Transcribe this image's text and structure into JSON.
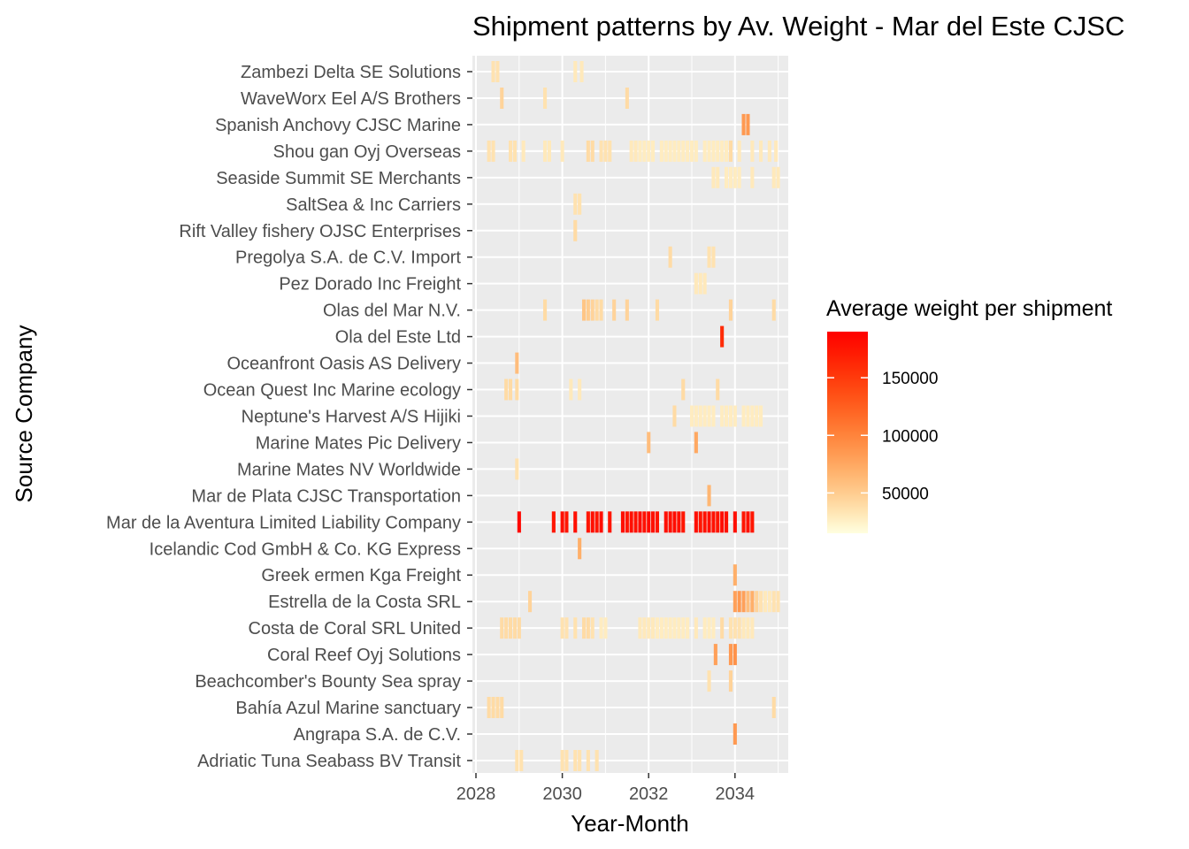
{
  "chart_data": {
    "type": "heatmap",
    "title": "Shipment patterns by Av. Weight - Mar del Este CJSC",
    "xlabel": "Year-Month",
    "ylabel": "Source Company",
    "xlim": [
      2028.0,
      2035.25
    ],
    "x_ticks": [
      2028,
      2030,
      2032,
      2034
    ],
    "grid": true,
    "legend": {
      "title": "Average weight per shipment",
      "placement": "right",
      "ticks": [
        50000,
        100000,
        150000
      ],
      "range": [
        15000,
        190000
      ],
      "color_low": "#FFFFE0",
      "color_high": "#FF0000"
    },
    "categories": [
      "Zambezi Delta  SE Solutions",
      "WaveWorx Eel A/S Brothers",
      "Spanish Anchovy CJSC Marine",
      "Shou gan  Oyj Overseas",
      "Seaside Summit SE Merchants",
      "SaltSea & Inc Carriers",
      "Rift Valley fishery OJSC Enterprises",
      "Pregolya S.A. de C.V. Import",
      "Pez Dorado Inc Freight ",
      "Olas del Mar N.V.",
      "Ola del Este Ltd",
      "Oceanfront Oasis AS Delivery",
      "Ocean Quest Inc Marine ecology",
      "Neptune's Harvest A/S Hijiki",
      "Marine Mates Pic Delivery",
      "Marine Mates NV Worldwide",
      "Mar de Plata CJSC Transportation",
      "Mar de la Aventura Limited Liability Company",
      "Icelandic Cod GmbH & Co. KG Express",
      "Greek ermen Kga Freight ",
      "Estrella de la Costa SRL",
      "Costa de Coral SRL United",
      "Coral Reef Oyj Solutions",
      "Beachcomber's Bounty Sea spray",
      "Bahía Azul Marine sanctuary",
      "Angrapa S.A. de C.V.",
      "Adriatic Tuna Seabass BV Transit"
    ],
    "series": [
      {
        "company": "Zambezi Delta  SE Solutions",
        "points": [
          [
            2028.4,
            35000
          ],
          [
            2028.5,
            35000
          ],
          [
            2030.3,
            30000
          ],
          [
            2030.45,
            30000
          ]
        ]
      },
      {
        "company": "WaveWorx Eel A/S Brothers",
        "points": [
          [
            2028.6,
            45000
          ],
          [
            2029.6,
            35000
          ],
          [
            2031.5,
            40000
          ]
        ]
      },
      {
        "company": "Spanish Anchovy CJSC Marine",
        "points": [
          [
            2034.2,
            85000
          ],
          [
            2034.3,
            85000
          ]
        ]
      },
      {
        "company": "Shou gan  Oyj Overseas",
        "points": [
          [
            2028.3,
            35000
          ],
          [
            2028.4,
            35000
          ],
          [
            2028.8,
            35000
          ],
          [
            2028.9,
            35000
          ],
          [
            2029.1,
            30000
          ],
          [
            2029.6,
            30000
          ],
          [
            2029.7,
            30000
          ],
          [
            2030.0,
            30000
          ],
          [
            2030.6,
            40000
          ],
          [
            2030.7,
            40000
          ],
          [
            2030.9,
            35000
          ],
          [
            2031.0,
            35000
          ],
          [
            2031.1,
            35000
          ],
          [
            2031.6,
            30000
          ],
          [
            2031.7,
            30000
          ],
          [
            2031.8,
            28000
          ],
          [
            2031.9,
            28000
          ],
          [
            2032.0,
            28000
          ],
          [
            2032.1,
            28000
          ],
          [
            2032.3,
            28000
          ],
          [
            2032.4,
            28000
          ],
          [
            2032.5,
            28000
          ],
          [
            2032.6,
            28000
          ],
          [
            2032.7,
            28000
          ],
          [
            2032.8,
            28000
          ],
          [
            2032.9,
            28000
          ],
          [
            2033.0,
            28000
          ],
          [
            2033.1,
            28000
          ],
          [
            2033.3,
            28000
          ],
          [
            2033.4,
            28000
          ],
          [
            2033.5,
            28000
          ],
          [
            2033.6,
            28000
          ],
          [
            2033.7,
            28000
          ],
          [
            2033.8,
            28000
          ],
          [
            2033.9,
            40000
          ],
          [
            2034.1,
            30000
          ],
          [
            2034.4,
            30000
          ],
          [
            2034.6,
            30000
          ],
          [
            2034.8,
            30000
          ],
          [
            2034.95,
            30000
          ]
        ]
      },
      {
        "company": "Seaside Summit SE Merchants",
        "points": [
          [
            2033.5,
            30000
          ],
          [
            2033.6,
            30000
          ],
          [
            2033.8,
            28000
          ],
          [
            2033.9,
            28000
          ],
          [
            2034.0,
            28000
          ],
          [
            2034.1,
            28000
          ],
          [
            2034.4,
            30000
          ],
          [
            2034.9,
            30000
          ],
          [
            2035.0,
            30000
          ]
        ]
      },
      {
        "company": "SaltSea & Inc Carriers",
        "points": [
          [
            2030.3,
            35000
          ],
          [
            2030.4,
            35000
          ]
        ]
      },
      {
        "company": "Rift Valley fishery OJSC Enterprises",
        "points": [
          [
            2030.3,
            40000
          ]
        ]
      },
      {
        "company": "Pregolya S.A. de C.V. Import",
        "points": [
          [
            2032.5,
            40000
          ],
          [
            2033.4,
            35000
          ],
          [
            2033.5,
            35000
          ]
        ]
      },
      {
        "company": "Pez Dorado Inc Freight ",
        "points": [
          [
            2033.1,
            30000
          ],
          [
            2033.2,
            30000
          ],
          [
            2033.3,
            30000
          ]
        ]
      },
      {
        "company": "Olas del Mar N.V.",
        "points": [
          [
            2029.6,
            40000
          ],
          [
            2030.5,
            55000
          ],
          [
            2030.6,
            50000
          ],
          [
            2030.7,
            45000
          ],
          [
            2030.8,
            40000
          ],
          [
            2030.9,
            40000
          ],
          [
            2031.2,
            45000
          ],
          [
            2031.5,
            45000
          ],
          [
            2032.2,
            40000
          ],
          [
            2033.9,
            45000
          ],
          [
            2034.9,
            40000
          ]
        ]
      },
      {
        "company": "Ola del Este Ltd",
        "points": [
          [
            2033.7,
            160000
          ]
        ]
      },
      {
        "company": "Oceanfront Oasis AS Delivery",
        "points": [
          [
            2028.95,
            60000
          ]
        ]
      },
      {
        "company": "Ocean Quest Inc Marine ecology",
        "points": [
          [
            2028.7,
            40000
          ],
          [
            2028.8,
            40000
          ],
          [
            2028.95,
            40000
          ],
          [
            2030.2,
            30000
          ],
          [
            2030.4,
            30000
          ],
          [
            2032.8,
            40000
          ],
          [
            2033.6,
            40000
          ]
        ]
      },
      {
        "company": "Neptune's Harvest A/S Hijiki",
        "points": [
          [
            2032.6,
            40000
          ],
          [
            2033.0,
            28000
          ],
          [
            2033.1,
            28000
          ],
          [
            2033.2,
            28000
          ],
          [
            2033.3,
            28000
          ],
          [
            2033.4,
            28000
          ],
          [
            2033.5,
            28000
          ],
          [
            2033.7,
            28000
          ],
          [
            2033.8,
            28000
          ],
          [
            2033.9,
            28000
          ],
          [
            2034.0,
            28000
          ],
          [
            2034.2,
            28000
          ],
          [
            2034.3,
            28000
          ],
          [
            2034.4,
            28000
          ],
          [
            2034.5,
            28000
          ],
          [
            2034.6,
            28000
          ]
        ]
      },
      {
        "company": "Marine Mates Pic Delivery",
        "points": [
          [
            2032.0,
            60000
          ],
          [
            2033.1,
            75000
          ]
        ]
      },
      {
        "company": "Marine Mates NV Worldwide",
        "points": [
          [
            2028.95,
            35000
          ]
        ]
      },
      {
        "company": "Mar de Plata CJSC Transportation",
        "points": [
          [
            2033.4,
            65000
          ]
        ]
      },
      {
        "company": "Mar de la Aventura Limited Liability Company",
        "points": [
          [
            2029.0,
            185000
          ],
          [
            2029.8,
            175000
          ],
          [
            2030.0,
            180000
          ],
          [
            2030.1,
            175000
          ],
          [
            2030.3,
            180000
          ],
          [
            2030.6,
            175000
          ],
          [
            2030.7,
            180000
          ],
          [
            2030.8,
            175000
          ],
          [
            2030.9,
            180000
          ],
          [
            2031.1,
            175000
          ],
          [
            2031.4,
            180000
          ],
          [
            2031.5,
            175000
          ],
          [
            2031.6,
            180000
          ],
          [
            2031.7,
            178000
          ],
          [
            2031.8,
            182000
          ],
          [
            2031.9,
            178000
          ],
          [
            2032.0,
            182000
          ],
          [
            2032.1,
            178000
          ],
          [
            2032.2,
            175000
          ],
          [
            2032.4,
            180000
          ],
          [
            2032.5,
            178000
          ],
          [
            2032.6,
            182000
          ],
          [
            2032.7,
            178000
          ],
          [
            2032.8,
            175000
          ],
          [
            2033.1,
            180000
          ],
          [
            2033.2,
            175000
          ],
          [
            2033.3,
            178000
          ],
          [
            2033.4,
            180000
          ],
          [
            2033.5,
            178000
          ],
          [
            2033.6,
            175000
          ],
          [
            2033.7,
            182000
          ],
          [
            2033.8,
            178000
          ],
          [
            2034.0,
            180000
          ],
          [
            2034.2,
            175000
          ],
          [
            2034.3,
            178000
          ],
          [
            2034.4,
            175000
          ]
        ]
      },
      {
        "company": "Icelandic Cod GmbH & Co. KG Express",
        "points": [
          [
            2030.4,
            70000
          ]
        ]
      },
      {
        "company": "Greek ermen Kga Freight ",
        "points": [
          [
            2034.0,
            70000
          ]
        ]
      },
      {
        "company": "Estrella de la Costa SRL",
        "points": [
          [
            2029.25,
            45000
          ],
          [
            2034.0,
            80000
          ],
          [
            2034.1,
            85000
          ],
          [
            2034.2,
            80000
          ],
          [
            2034.3,
            60000
          ],
          [
            2034.4,
            70000
          ],
          [
            2034.5,
            45000
          ],
          [
            2034.6,
            35000
          ],
          [
            2034.7,
            30000
          ],
          [
            2034.8,
            30000
          ],
          [
            2034.9,
            35000
          ],
          [
            2035.0,
            35000
          ]
        ]
      },
      {
        "company": "Costa de Coral SRL United",
        "points": [
          [
            2028.6,
            40000
          ],
          [
            2028.7,
            40000
          ],
          [
            2028.8,
            40000
          ],
          [
            2028.9,
            40000
          ],
          [
            2029.0,
            40000
          ],
          [
            2030.0,
            35000
          ],
          [
            2030.1,
            35000
          ],
          [
            2030.3,
            35000
          ],
          [
            2030.5,
            40000
          ],
          [
            2030.6,
            40000
          ],
          [
            2030.7,
            35000
          ],
          [
            2030.9,
            28000
          ],
          [
            2031.0,
            28000
          ],
          [
            2031.8,
            30000
          ],
          [
            2031.9,
            30000
          ],
          [
            2032.0,
            30000
          ],
          [
            2032.1,
            30000
          ],
          [
            2032.2,
            28000
          ],
          [
            2032.3,
            28000
          ],
          [
            2032.4,
            28000
          ],
          [
            2032.5,
            28000
          ],
          [
            2032.6,
            28000
          ],
          [
            2032.7,
            28000
          ],
          [
            2032.8,
            28000
          ],
          [
            2032.9,
            28000
          ],
          [
            2033.1,
            30000
          ],
          [
            2033.3,
            28000
          ],
          [
            2033.4,
            28000
          ],
          [
            2033.5,
            28000
          ],
          [
            2033.7,
            40000
          ],
          [
            2033.9,
            35000
          ],
          [
            2034.0,
            35000
          ],
          [
            2034.1,
            35000
          ],
          [
            2034.2,
            30000
          ],
          [
            2034.3,
            30000
          ],
          [
            2034.4,
            30000
          ]
        ]
      },
      {
        "company": "Coral Reef Oyj Solutions",
        "points": [
          [
            2033.55,
            80000
          ],
          [
            2033.9,
            85000
          ],
          [
            2034.0,
            90000
          ]
        ]
      },
      {
        "company": "Beachcomber's Bounty Sea spray",
        "points": [
          [
            2033.4,
            35000
          ],
          [
            2033.9,
            45000
          ]
        ]
      },
      {
        "company": "Bahía Azul Marine sanctuary",
        "points": [
          [
            2028.3,
            40000
          ],
          [
            2028.4,
            40000
          ],
          [
            2028.5,
            40000
          ],
          [
            2028.6,
            40000
          ],
          [
            2034.9,
            40000
          ]
        ]
      },
      {
        "company": "Angrapa S.A. de C.V.",
        "points": [
          [
            2034.0,
            85000
          ]
        ]
      },
      {
        "company": "Adriatic Tuna Seabass BV Transit",
        "points": [
          [
            2028.95,
            35000
          ],
          [
            2029.05,
            35000
          ],
          [
            2030.0,
            35000
          ],
          [
            2030.1,
            35000
          ],
          [
            2030.3,
            35000
          ],
          [
            2030.4,
            35000
          ],
          [
            2030.6,
            35000
          ],
          [
            2030.8,
            35000
          ]
        ]
      }
    ]
  }
}
